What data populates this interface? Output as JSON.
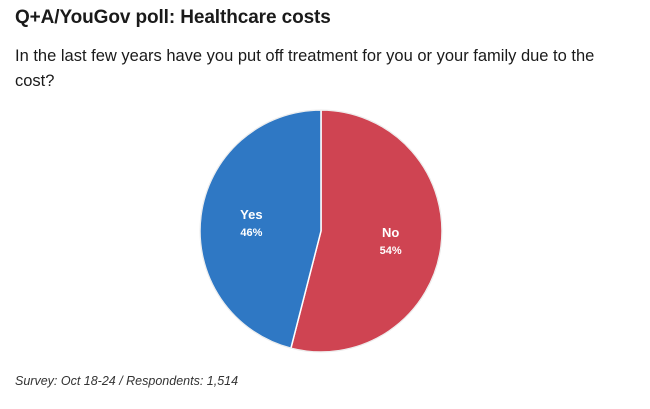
{
  "header": {
    "title": "Q+A/YouGov poll: Healthcare costs",
    "subtitle": "In the last few years have you put off treatment for you or your family due to the cost?"
  },
  "chart_data": {
    "type": "pie",
    "title": "Q+A/YouGov poll: Healthcare costs",
    "subtitle": "In the last few years have you put off treatment for you or your family due to the cost?",
    "slices": [
      {
        "label": "No",
        "value": 54,
        "value_label": "54%",
        "color": "#cf4452"
      },
      {
        "label": "Yes",
        "value": 46,
        "value_label": "46%",
        "color": "#2f78c4"
      }
    ],
    "legend": "none",
    "start_angle": "12 o'clock",
    "direction": "clockwise"
  },
  "footer": {
    "note": "Survey: Oct 18-24 / Respondents: 1,514"
  }
}
